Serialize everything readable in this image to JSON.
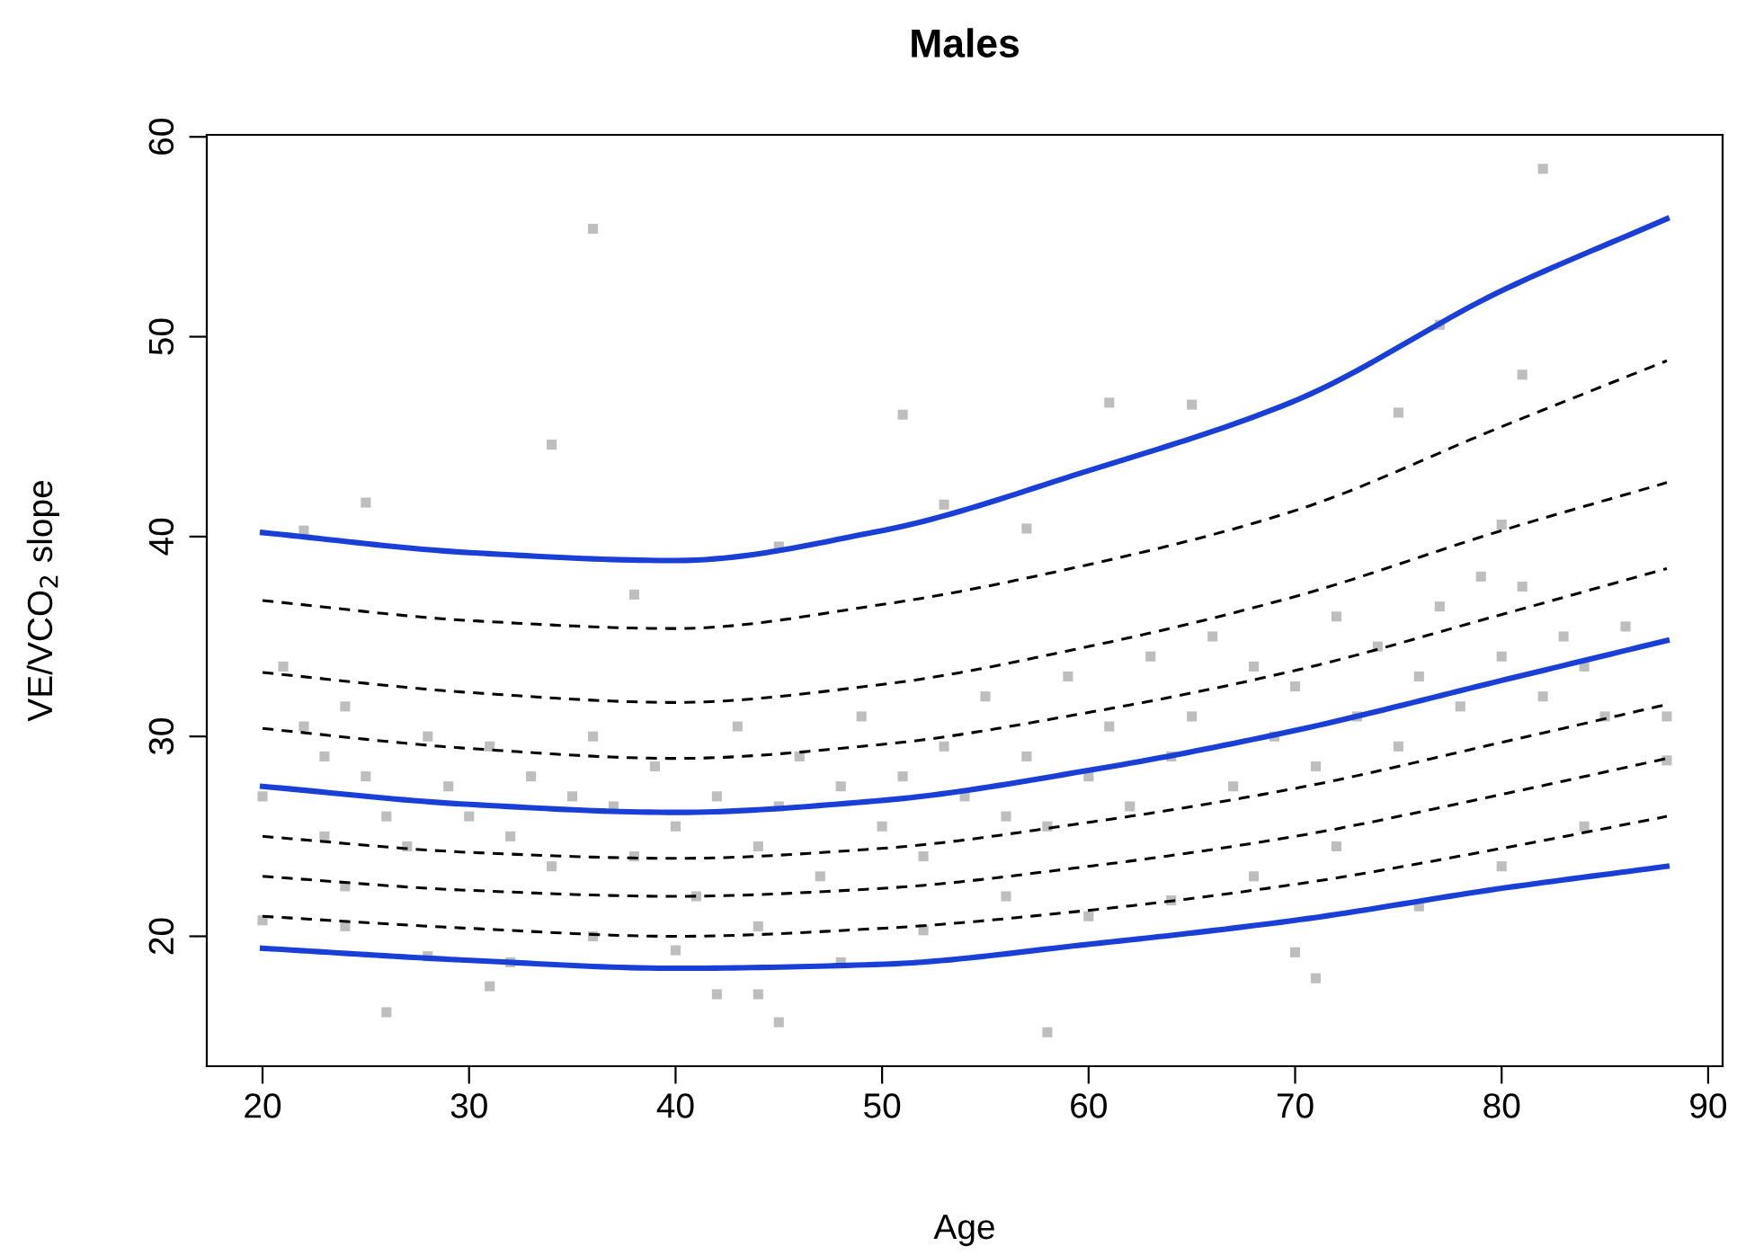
{
  "chart_data": {
    "type": "line",
    "title": "Males",
    "xlabel": "Age",
    "ylabel": "VE/VCO$_{2}$ slope",
    "xlim": [
      17.3,
      90.7
    ],
    "ylim": [
      13.5,
      60.1
    ],
    "xticks": [
      20,
      30,
      40,
      50,
      60,
      70,
      80,
      90
    ],
    "yticks": [
      20,
      30,
      40,
      50,
      60
    ],
    "grid": false,
    "series": [
      {
        "type": "scatter",
        "color": "#bebebe",
        "marker": "square",
        "x": [
          36,
          34,
          45,
          82,
          77,
          81,
          51,
          61,
          65,
          25,
          58,
          26,
          45,
          31,
          71,
          70,
          42,
          44,
          22,
          38,
          53,
          57,
          75,
          80,
          20,
          21,
          22,
          23,
          23,
          24,
          24,
          25,
          26,
          27,
          28,
          29,
          30,
          31,
          32,
          33,
          34,
          35,
          36,
          37,
          38,
          39,
          40,
          41,
          42,
          43,
          44,
          45,
          46,
          47,
          48,
          49,
          50,
          51,
          52,
          53,
          54,
          55,
          56,
          57,
          58,
          59,
          60,
          61,
          62,
          63,
          64,
          65,
          66,
          67,
          68,
          69,
          70,
          71,
          72,
          73,
          74,
          75,
          76,
          77,
          78,
          79,
          80,
          81,
          82,
          83,
          84,
          85,
          86,
          88,
          20,
          24,
          28,
          32,
          36,
          40,
          44,
          48,
          52,
          56,
          60,
          64,
          68,
          72,
          76,
          80,
          84,
          88
        ],
        "values": [
          55.4,
          44.6,
          39.5,
          58.4,
          50.6,
          48.1,
          46.1,
          46.7,
          46.6,
          41.7,
          15.2,
          16.2,
          15.7,
          17.5,
          17.9,
          19.2,
          17.1,
          17.1,
          40.3,
          37.1,
          41.6,
          40.4,
          46.2,
          40.6,
          27.0,
          33.5,
          30.5,
          25.0,
          29.0,
          31.5,
          22.5,
          28.0,
          26.0,
          24.5,
          30.0,
          27.5,
          26.0,
          29.5,
          25.0,
          28.0,
          23.5,
          27.0,
          30.0,
          26.5,
          24.0,
          28.5,
          25.5,
          22.0,
          27.0,
          30.5,
          24.5,
          26.5,
          29.0,
          23.0,
          27.5,
          31.0,
          25.5,
          28.0,
          24.0,
          29.5,
          27.0,
          32.0,
          26.0,
          29.0,
          25.5,
          33.0,
          28.0,
          30.5,
          26.5,
          34.0,
          29.0,
          31.0,
          35.0,
          27.5,
          33.5,
          30.0,
          32.5,
          28.5,
          36.0,
          31.0,
          34.5,
          29.5,
          33.0,
          36.5,
          31.5,
          38.0,
          34.0,
          37.5,
          32.0,
          35.0,
          33.5,
          31.0,
          35.5,
          31.0,
          20.8,
          20.5,
          19.0,
          18.7,
          20.0,
          19.3,
          20.5,
          18.7,
          20.3,
          22.0,
          21.0,
          21.8,
          23.0,
          24.5,
          21.5,
          23.5,
          25.5,
          28.8
        ]
      },
      {
        "color": "#1a3fd6",
        "line_style": "solid",
        "x": [
          20,
          30,
          40,
          50,
          60,
          70,
          80,
          88
        ],
        "values": [
          40.2,
          39.2,
          38.8,
          40.3,
          43.3,
          46.8,
          52.3,
          55.9
        ]
      },
      {
        "color": "#000000",
        "line_style": "dashed",
        "x": [
          20,
          30,
          40,
          50,
          60,
          70,
          80,
          88
        ],
        "values": [
          36.8,
          35.8,
          35.4,
          36.6,
          38.6,
          41.3,
          45.5,
          48.8
        ]
      },
      {
        "color": "#000000",
        "line_style": "dashed",
        "x": [
          20,
          30,
          40,
          50,
          60,
          70,
          80,
          88
        ],
        "values": [
          33.2,
          32.2,
          31.7,
          32.6,
          34.5,
          37.0,
          40.3,
          42.7
        ]
      },
      {
        "color": "#000000",
        "line_style": "dashed",
        "x": [
          20,
          30,
          40,
          50,
          60,
          70,
          80,
          88
        ],
        "values": [
          30.4,
          29.4,
          28.9,
          29.6,
          31.2,
          33.3,
          36.1,
          38.4
        ]
      },
      {
        "color": "#1a3fd6",
        "line_style": "solid",
        "x": [
          20,
          30,
          40,
          50,
          60,
          70,
          80,
          88
        ],
        "values": [
          27.5,
          26.6,
          26.2,
          26.8,
          28.3,
          30.3,
          32.8,
          34.8
        ]
      },
      {
        "color": "#000000",
        "line_style": "dashed",
        "x": [
          20,
          30,
          40,
          50,
          60,
          70,
          80,
          88
        ],
        "values": [
          25.0,
          24.2,
          23.9,
          24.4,
          25.7,
          27.4,
          29.7,
          31.6
        ]
      },
      {
        "color": "#000000",
        "line_style": "dashed",
        "x": [
          20,
          30,
          40,
          50,
          60,
          70,
          80,
          88
        ],
        "values": [
          23.0,
          22.3,
          22.0,
          22.4,
          23.5,
          25.0,
          27.1,
          28.9
        ]
      },
      {
        "color": "#000000",
        "line_style": "dashed",
        "x": [
          20,
          30,
          40,
          50,
          60,
          70,
          80,
          88
        ],
        "values": [
          21.0,
          20.4,
          20.0,
          20.4,
          21.3,
          22.6,
          24.4,
          26.0
        ]
      },
      {
        "color": "#1a3fd6",
        "line_style": "solid",
        "x": [
          20,
          30,
          40,
          50,
          60,
          70,
          80,
          88
        ],
        "values": [
          19.4,
          18.8,
          18.4,
          18.6,
          19.6,
          20.8,
          22.4,
          23.5
        ]
      }
    ]
  }
}
